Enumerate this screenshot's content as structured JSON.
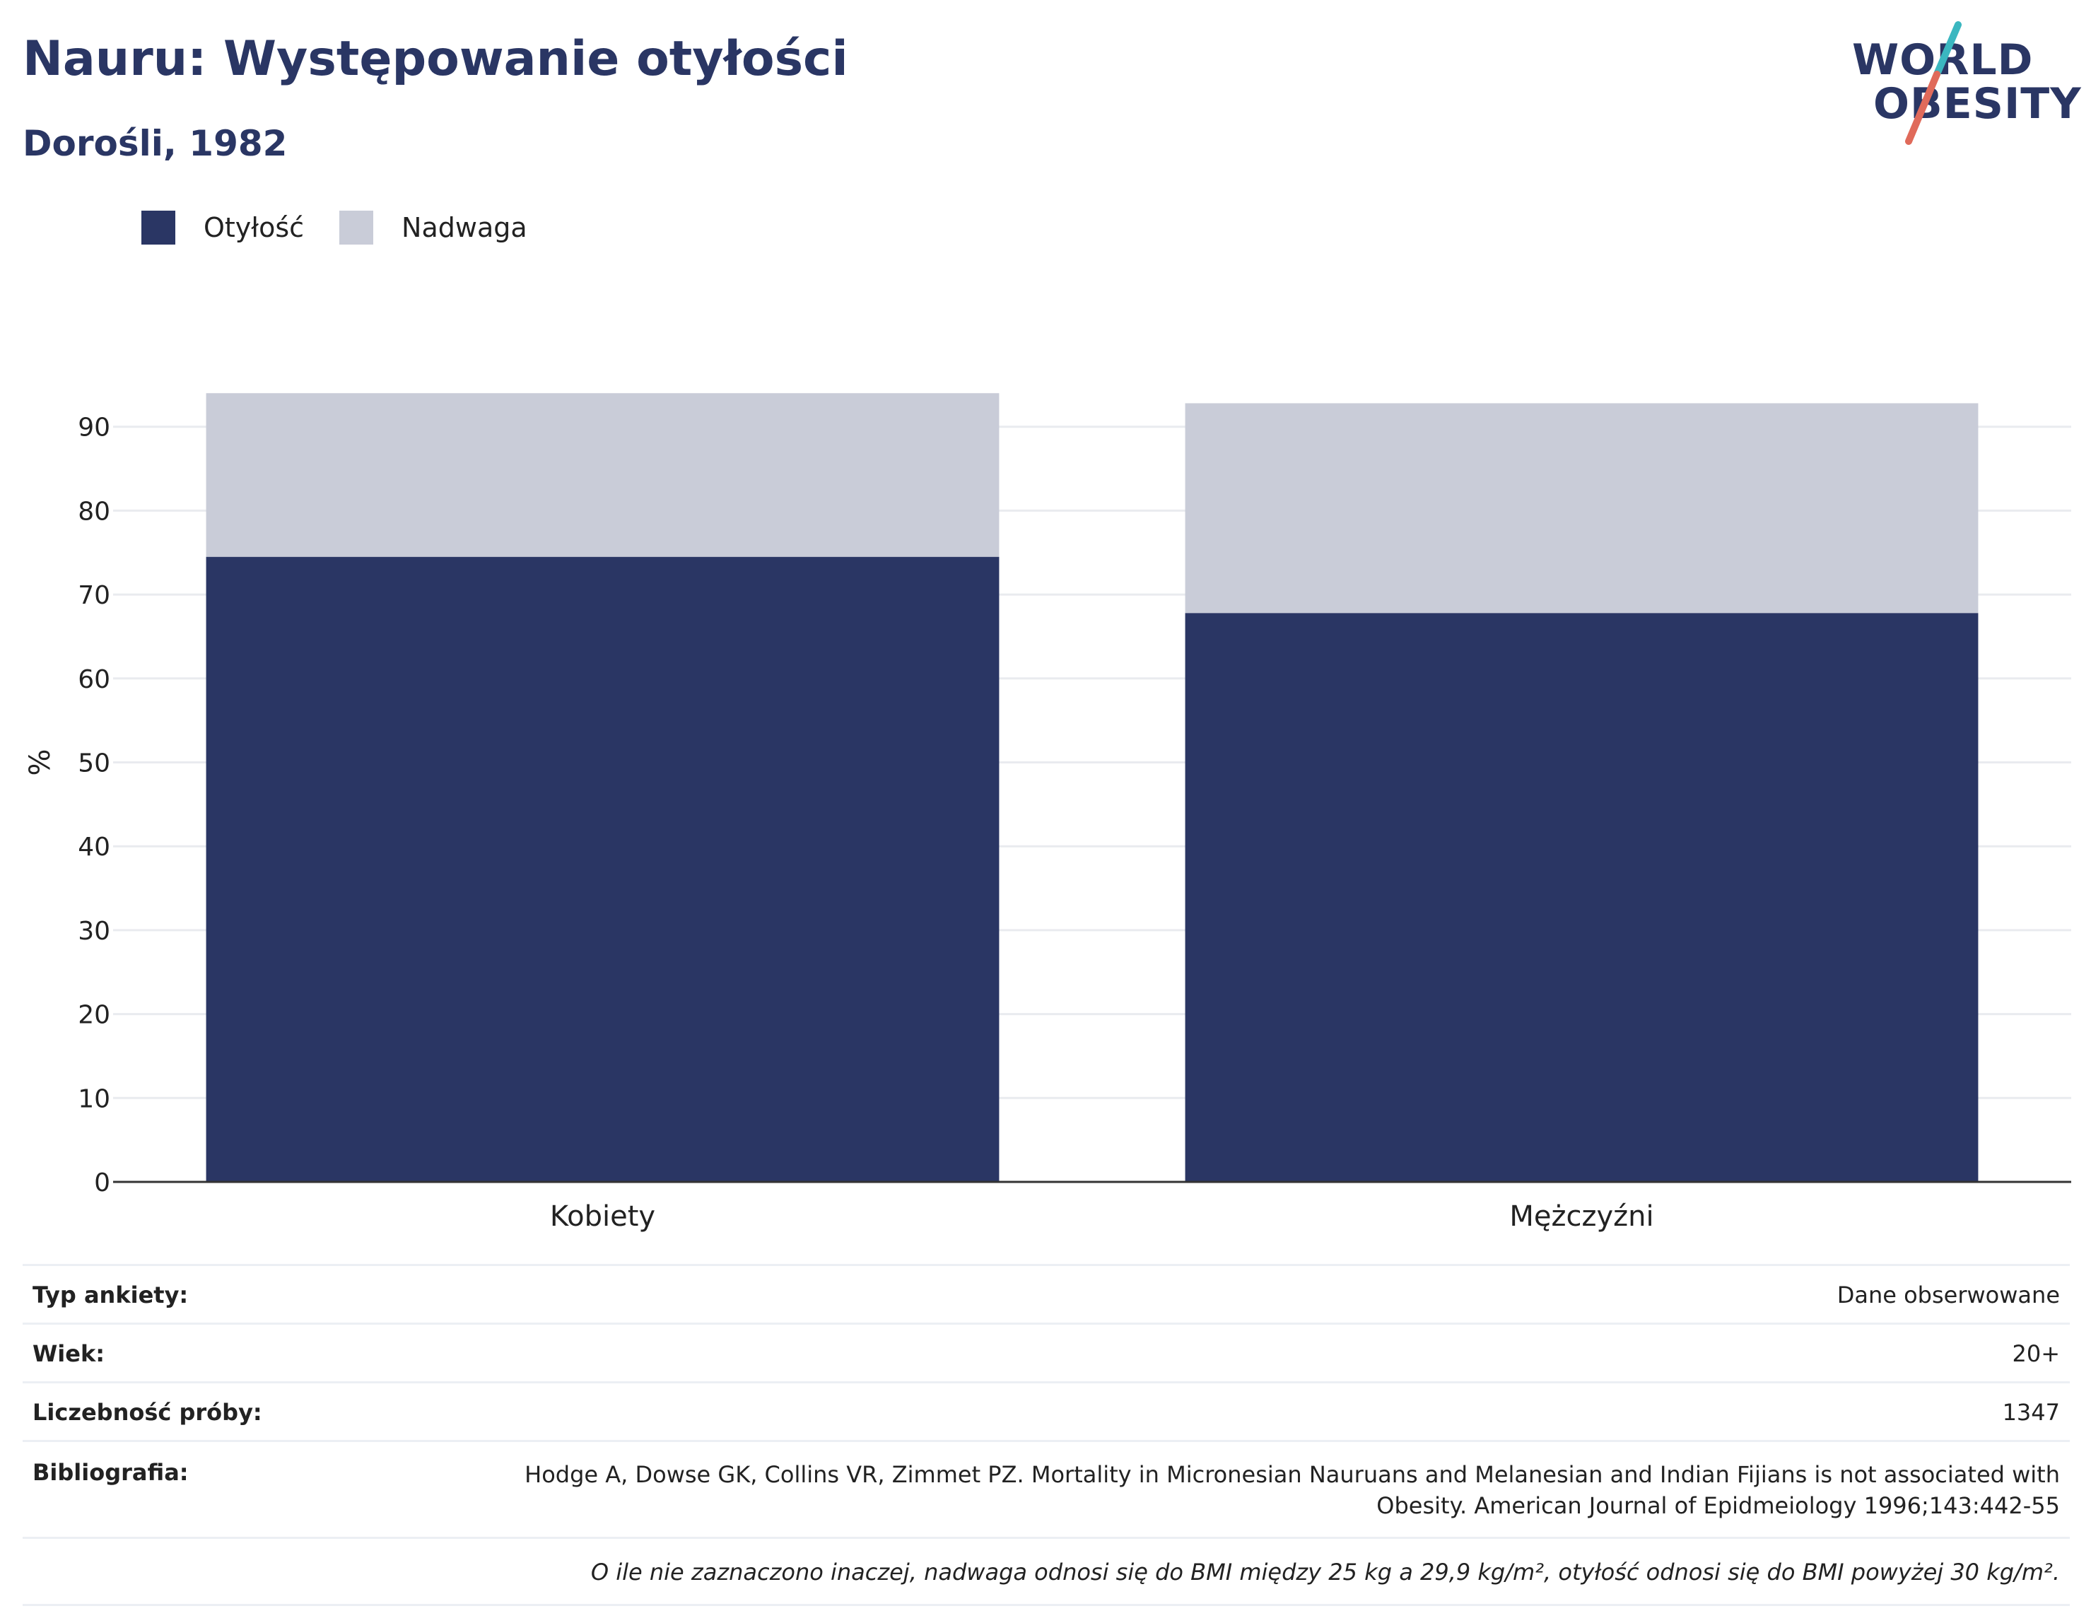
{
  "header": {
    "title": "Nauru: Występowanie otyłości",
    "subtitle": "Dorośli, 1982"
  },
  "logo": {
    "line1": "WORLD",
    "line2": "OBESITY",
    "accent_teal": "#3bb7c0",
    "accent_red": "#e06a5a"
  },
  "legend": {
    "items": [
      {
        "label": "Otyłość",
        "color": "#2a3664"
      },
      {
        "label": "Nadwaga",
        "color": "#c9ccd8"
      }
    ]
  },
  "chart_data": {
    "type": "bar",
    "stacked": true,
    "categories": [
      "Kobiety",
      "Mężczyźni"
    ],
    "series": [
      {
        "name": "Otyłość",
        "values": [
          74.5,
          67.8
        ],
        "color": "#2a3664"
      },
      {
        "name": "Nadwaga",
        "values": [
          19.5,
          25.0
        ],
        "color": "#c9ccd8"
      }
    ],
    "ylabel": "%",
    "xlabel": "",
    "ylim": [
      0,
      95
    ],
    "yticks": [
      0,
      10,
      20,
      30,
      40,
      50,
      60,
      70,
      80,
      90
    ],
    "grid": true,
    "legend_position": "top-left"
  },
  "info": {
    "rows": [
      {
        "key": "Typ ankiety:",
        "value": "Dane obserwowane"
      },
      {
        "key": "Wiek:",
        "value": "20+"
      },
      {
        "key": "Liczebność próby:",
        "value": "1347"
      },
      {
        "key": "Bibliografia:",
        "value": "Hodge A, Dowse GK, Collins VR, Zimmet PZ. Mortality in Micronesian Nauruans and Melanesian and Indian Fijians is not associated with Obesity. American Journal of Epidmeiology 1996;143:442-55"
      }
    ],
    "note": "O ile nie zaznaczono inaczej, nadwaga odnosi się do BMI między 25 kg a 29,9 kg/m², otyłość odnosi się do BMI powyżej 30 kg/m²."
  }
}
